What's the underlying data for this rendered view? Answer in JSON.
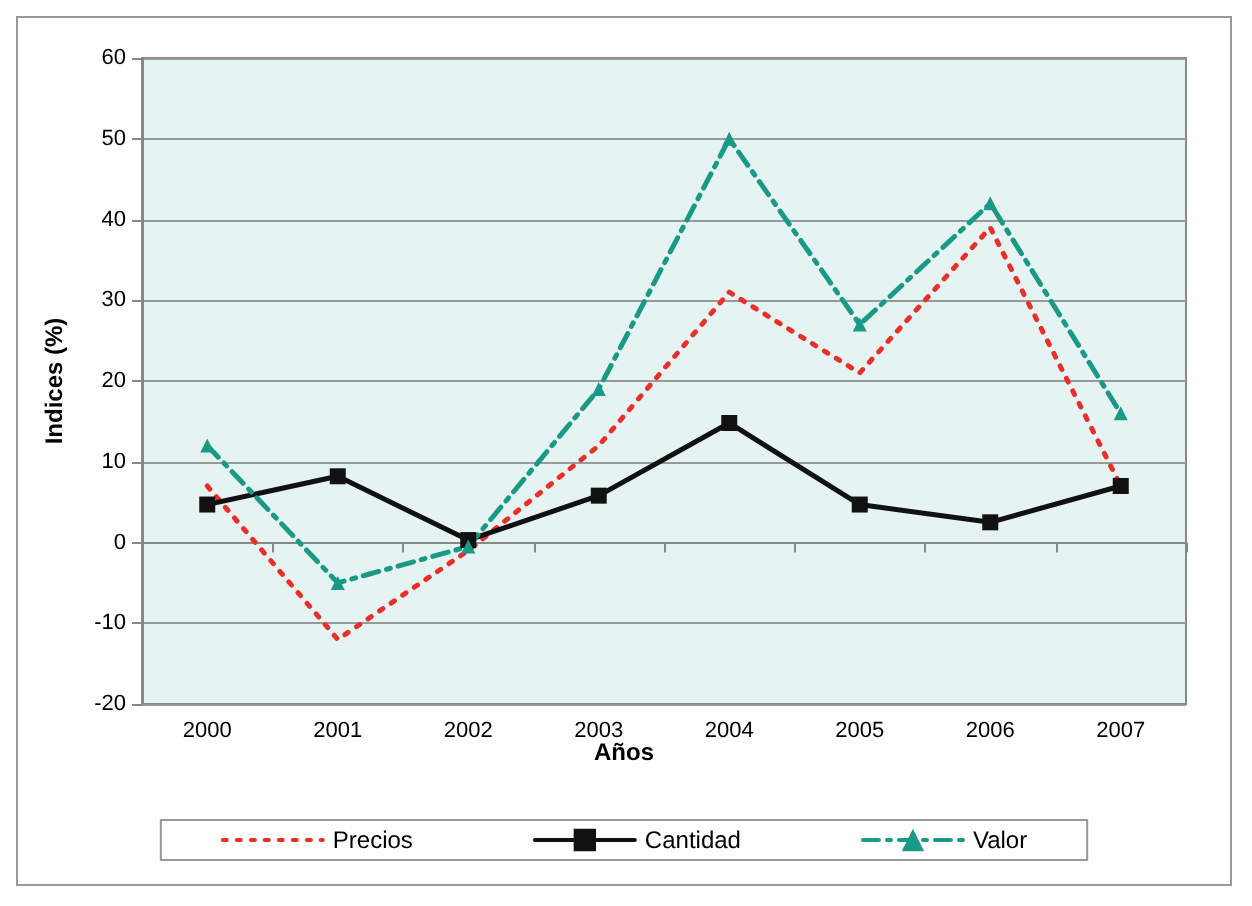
{
  "chart_data": {
    "type": "line",
    "xlabel": "Años",
    "ylabel": "Indices (%)",
    "categories": [
      "2000",
      "2001",
      "2002",
      "2003",
      "2004",
      "2005",
      "2006",
      "2007"
    ],
    "series": [
      {
        "name": "Precios",
        "color": "#e8302a",
        "marker": "none",
        "line_style": "dotted",
        "values": [
          7,
          -12,
          -1,
          12,
          31,
          21,
          39,
          7
        ]
      },
      {
        "name": "Cantidad",
        "color": "#111111",
        "marker": "square",
        "line_style": "solid",
        "values": [
          4.7,
          8.2,
          0.3,
          5.8,
          14.8,
          4.7,
          2.5,
          7
        ]
      },
      {
        "name": "Valor",
        "color": "#1a9a86",
        "marker": "triangle",
        "line_style": "dashed",
        "values": [
          12,
          -5,
          -0.5,
          19,
          50,
          27,
          42,
          16
        ]
      }
    ],
    "ylim": [
      -20,
      60
    ],
    "yticks": [
      -20,
      -10,
      0,
      10,
      20,
      30,
      40,
      50,
      60
    ],
    "grid": "y",
    "legend": "bottom"
  }
}
